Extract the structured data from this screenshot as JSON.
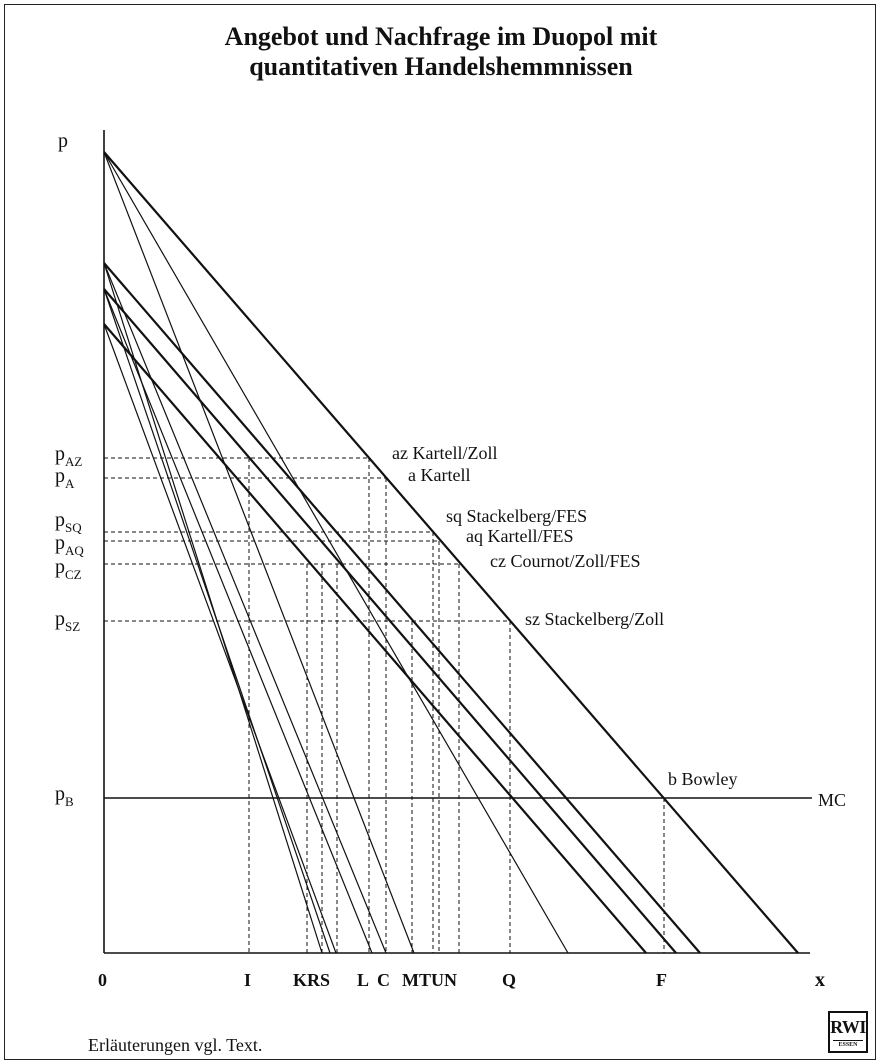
{
  "title_line1": "Angebot und Nachfrage im Duopol mit",
  "title_line2": "quantitativen Handelshemmnissen",
  "footnote": "Erläuterungen vgl. Text.",
  "logo": {
    "text": "RWI",
    "subtext": "ESSEN"
  },
  "axes": {
    "y_label": "p",
    "x_label": "x",
    "origin": "0"
  },
  "price_labels": [
    {
      "base": "p",
      "sub": "AZ"
    },
    {
      "base": "p",
      "sub": "A"
    },
    {
      "base": "p",
      "sub": "SQ"
    },
    {
      "base": "p",
      "sub": "AQ"
    },
    {
      "base": "p",
      "sub": "CZ"
    },
    {
      "base": "p",
      "sub": "SZ"
    },
    {
      "base": "p",
      "sub": "B"
    }
  ],
  "x_tick_labels": [
    "I",
    "KRS",
    "L",
    "C",
    "MTUN",
    "Q",
    "F"
  ],
  "point_labels": [
    "az Kartell/Zoll",
    "a Kartell",
    "sq Stackelberg/FES",
    "aq Kartell/FES",
    "cz Cournot/Zoll/FES",
    "sz Stackelberg/Zoll",
    "b Bowley"
  ],
  "mc_label": "MC"
}
